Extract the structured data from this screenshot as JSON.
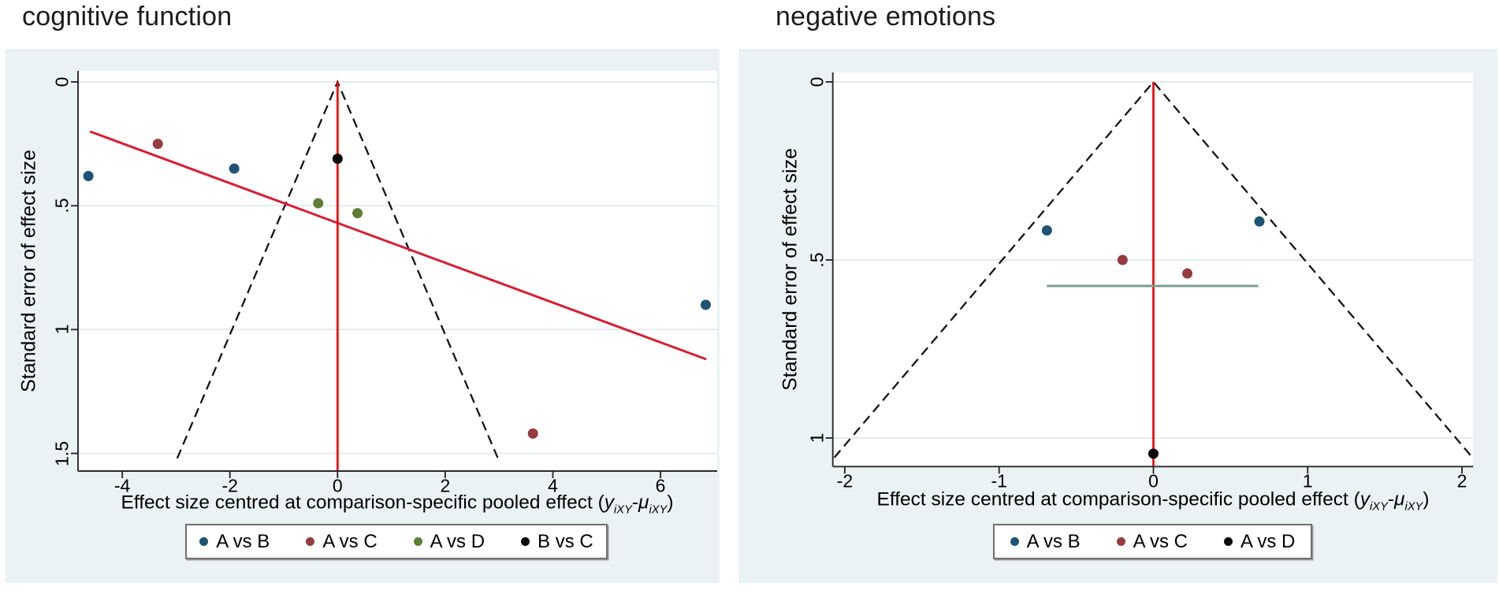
{
  "figure": {
    "description": "Two comparison-adjusted funnel plots from a network meta-analysis"
  },
  "colors": {
    "panel_bg": "#eaf2f3",
    "plot_bg": "#ffffff",
    "grid": "#dfe9ec",
    "axis": "#2a2a2a",
    "funnel_dash": "#141414",
    "ref_line": "#f20d0d",
    "regression_line": "#d81e34",
    "pooled_segment": "#7e9c90",
    "navy": "#1d5374",
    "maroon": "#963b40",
    "olive": "#5d7e34",
    "black": "#0a0a0a"
  },
  "chart_data": [
    {
      "type": "scatter",
      "title": "cognitive function",
      "ylabel": "Standard error of effect size",
      "xlabel": {
        "prefix": "Effect size centred at comparison-specific pooled effect (",
        "y_var": "y",
        "subscript": "iXY",
        "minus": "-",
        "mu_var": "μ",
        "subscript2": "iXY",
        "suffix": ")"
      },
      "xlim": [
        -4.82,
        7.05
      ],
      "se_lim": [
        0,
        1.57
      ],
      "grid": true,
      "legend_position": "bottom-center",
      "x_ticks": [
        {
          "v": -4,
          "label": "-4"
        },
        {
          "v": -2,
          "label": "-2"
        },
        {
          "v": 0,
          "label": "0"
        },
        {
          "v": 2,
          "label": "2"
        },
        {
          "v": 4,
          "label": "4"
        },
        {
          "v": 6,
          "label": "6"
        }
      ],
      "y_ticks": [
        {
          "v": 0,
          "label": "0"
        },
        {
          "v": 0.5,
          "label": ".5"
        },
        {
          "v": 1,
          "label": "1"
        },
        {
          "v": 1.5,
          "label": "1.5"
        }
      ],
      "ref_line_x": 0,
      "funnel": {
        "multiplier": 1.96,
        "se_apex": 0,
        "se_end": 1.52
      },
      "regression_line": {
        "x1": -4.6,
        "se1": 0.2,
        "x2": 6.85,
        "se2": 1.12
      },
      "series": [
        {
          "name": "A vs B",
          "color_key": "navy",
          "points": [
            {
              "x": -4.63,
              "se": 0.38
            },
            {
              "x": -1.92,
              "se": 0.35
            },
            {
              "x": 6.84,
              "se": 0.9
            }
          ]
        },
        {
          "name": "A vs C",
          "color_key": "maroon",
          "points": [
            {
              "x": -3.34,
              "se": 0.25
            },
            {
              "x": 3.63,
              "se": 1.42
            }
          ]
        },
        {
          "name": "A vs D",
          "color_key": "olive",
          "points": [
            {
              "x": -0.36,
              "se": 0.49
            },
            {
              "x": 0.37,
              "se": 0.53
            }
          ]
        },
        {
          "name": "B vs C",
          "color_key": "black",
          "points": [
            {
              "x": 0,
              "se": 0.31
            }
          ]
        }
      ]
    },
    {
      "type": "scatter",
      "title": "negative emotions",
      "ylabel": "Standard error of effect size",
      "xlabel": {
        "prefix": "Effect size centred at comparison-specific pooled effect (",
        "y_var": "y",
        "subscript": "iXY",
        "minus": "-",
        "mu_var": "μ",
        "subscript2": "iXY",
        "suffix": ")"
      },
      "xlim": [
        -2.08,
        2.07
      ],
      "se_lim": [
        0,
        1.08
      ],
      "grid": true,
      "legend_position": "bottom-center",
      "x_ticks": [
        {
          "v": -2,
          "label": "-2"
        },
        {
          "v": -1,
          "label": "-1"
        },
        {
          "v": 0,
          "label": "0"
        },
        {
          "v": 1,
          "label": "1"
        },
        {
          "v": 2,
          "label": "2"
        }
      ],
      "y_ticks": [
        {
          "v": 0,
          "label": "0"
        },
        {
          "v": 0.5,
          "label": ".5"
        },
        {
          "v": 1,
          "label": "1"
        }
      ],
      "ref_line_x": 0,
      "funnel": {
        "multiplier": 1.96,
        "se_apex": 0,
        "se_end": 1.055
      },
      "pooled_segment": {
        "x1": -0.69,
        "x2": 0.68,
        "se": 0.573
      },
      "series": [
        {
          "name": "A vs B",
          "color_key": "navy",
          "points": [
            {
              "x": -0.69,
              "se": 0.417
            },
            {
              "x": 0.687,
              "se": 0.392
            }
          ]
        },
        {
          "name": "A vs C",
          "color_key": "maroon",
          "points": [
            {
              "x": -0.2,
              "se": 0.5
            },
            {
              "x": 0.22,
              "se": 0.538
            }
          ]
        },
        {
          "name": "A vs D",
          "color_key": "black",
          "points": [
            {
              "x": 0,
              "se": 1.044
            }
          ]
        }
      ]
    }
  ]
}
